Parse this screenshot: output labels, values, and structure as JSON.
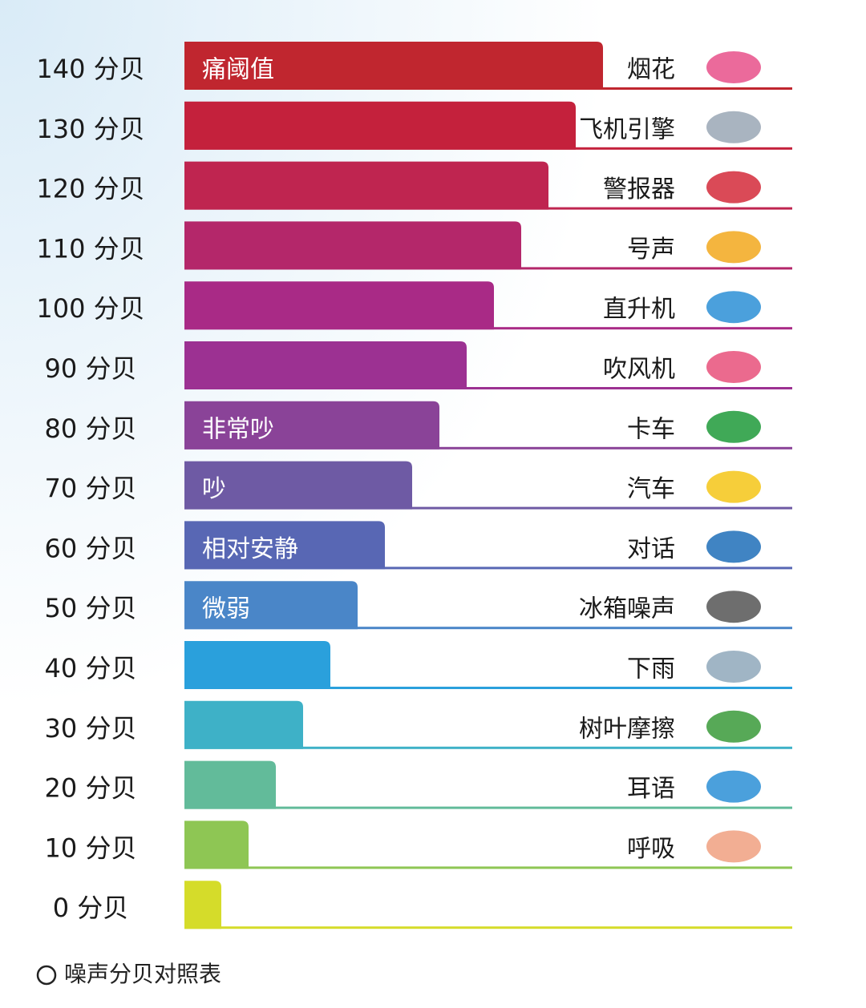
{
  "chart_data": {
    "type": "bar",
    "orientation": "horizontal",
    "values": [
      140,
      130,
      120,
      110,
      100,
      90,
      80,
      70,
      60,
      50,
      40,
      30,
      20,
      10,
      0
    ],
    "value_labels": [
      "140 分贝",
      "130 分贝",
      "120 分贝",
      "110 分贝",
      "100 分贝",
      "90 分贝",
      "80 分贝",
      "70 分贝",
      "60 分贝",
      "50 分贝",
      "40 分贝",
      "30 分贝",
      "20 分贝",
      "10 分贝",
      "0 分贝"
    ],
    "bar_labels": [
      "痛阈值",
      null,
      null,
      null,
      null,
      null,
      "非常吵",
      "吵",
      "相对安静",
      "微弱",
      null,
      null,
      null,
      null,
      null
    ],
    "sources": [
      "烟花",
      "飞机引擎",
      "警报器",
      "号声",
      "直升机",
      "吹风机",
      "卡车",
      "汽车",
      "对话",
      "冰箱噪声",
      "下雨",
      "树叶摩擦",
      "耳语",
      "呼吸",
      null
    ],
    "colors": [
      "#c0262f",
      "#c4213c",
      "#bf2550",
      "#b4276a",
      "#a92a86",
      "#9c3192",
      "#8a4398",
      "#6e5aa4",
      "#5867b4",
      "#4a86c8",
      "#2aa0dc",
      "#3eb1c7",
      "#62bb9a",
      "#8ec654",
      "#d5dc2a"
    ],
    "caption": "噪声分贝对照表"
  }
}
